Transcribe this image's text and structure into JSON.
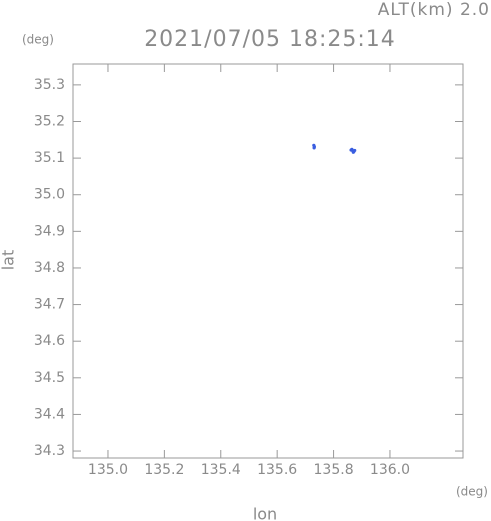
{
  "chart_data": {
    "type": "scatter",
    "title": "2021/07/05 18:25:14",
    "annotation": "ALT(km) 2.0",
    "y_unit": "(deg)",
    "x_unit": "(deg)",
    "xlabel": "lon",
    "ylabel": "lat",
    "series": [
      {
        "color": "#3a5ee0",
        "x": [
          135.73,
          135.732,
          135.731,
          135.865,
          135.868,
          135.872,
          135.875,
          135.87,
          135.862
        ],
        "values": [
          35.135,
          35.131,
          35.128,
          35.124,
          35.12,
          35.118,
          35.121,
          35.116,
          35.122
        ]
      }
    ],
    "xlim": [
      134.876,
      136.259
    ],
    "ylim": [
      34.281,
      35.357
    ],
    "xticks": [
      {
        "value": 135.0,
        "label": "135.0"
      },
      135.2,
      135.4,
      135.6,
      135.8,
      {
        "value": 136.0,
        "label": "136.0"
      }
    ],
    "yticks": [
      34.3,
      34.4,
      34.5,
      34.6,
      34.7,
      34.8,
      34.9,
      {
        "value": 35.0,
        "label": "35.0"
      },
      35.1,
      35.2,
      35.3
    ],
    "grid": false
  }
}
